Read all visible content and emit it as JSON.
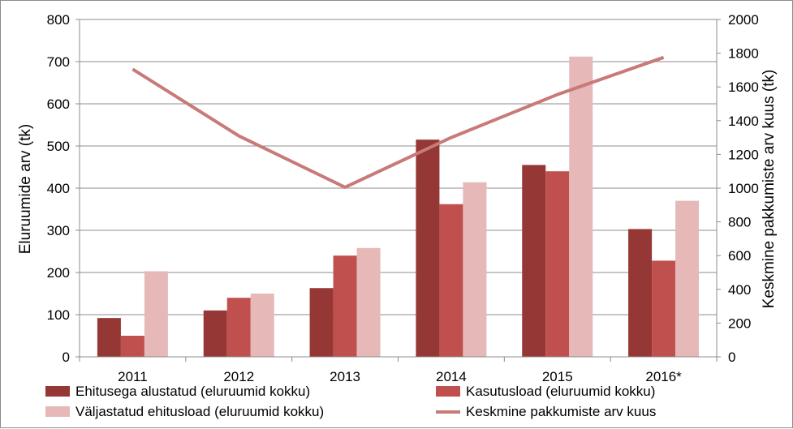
{
  "chart_data": {
    "type": "bar",
    "categories": [
      "2011",
      "2012",
      "2013",
      "2014",
      "2015",
      "2016*"
    ],
    "series": [
      {
        "name": "Ehitusega alustatud (eluruumid kokku)",
        "axis": "left",
        "kind": "bar",
        "color": "#953735",
        "values": [
          92,
          110,
          163,
          515,
          455,
          303
        ]
      },
      {
        "name": "Kasutusload (eluruumid kokku)",
        "axis": "left",
        "kind": "bar",
        "color": "#c0504d",
        "values": [
          50,
          140,
          240,
          362,
          440,
          228
        ]
      },
      {
        "name": "Väljastatud ehitusload (eluruumid kokku)",
        "axis": "left",
        "kind": "bar",
        "color": "#e6b9b8",
        "values": [
          203,
          150,
          258,
          414,
          712,
          370
        ]
      },
      {
        "name": "Keskmine pakkumiste arv kuus",
        "axis": "right",
        "kind": "line",
        "color": "#c87a78",
        "values": [
          1705,
          1310,
          1005,
          1300,
          1555,
          1775
        ]
      }
    ],
    "ylabel": "Eluruumide arv (tk)",
    "y2label": "Keskmine pakkumiste arv kuus (tk)",
    "ylim": [
      0,
      800
    ],
    "y2lim": [
      0,
      2000
    ],
    "yticks": [
      "0",
      "100",
      "200",
      "300",
      "400",
      "500",
      "600",
      "700",
      "800"
    ],
    "y2ticks": [
      "0",
      "200",
      "400",
      "600",
      "800",
      "1000",
      "1200",
      "1400",
      "1600",
      "1800",
      "2000"
    ],
    "grid": "horizontal",
    "legend_position": "bottom"
  }
}
